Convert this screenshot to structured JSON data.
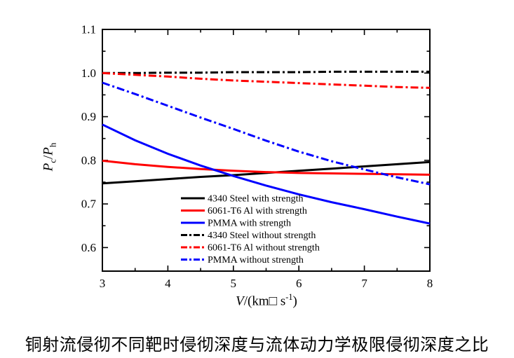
{
  "figure": {
    "caption": "铜射流侵彻不同靶时侵彻深度与流体动力学极限侵彻深度之比"
  },
  "axes": {
    "xlabel_var": "V",
    "xlabel_mid": "/(km□ s",
    "xlabel_sup": "-1",
    "xlabel_end": ")",
    "ylabel_p1": "P",
    "ylabel_sub1": "c",
    "ylabel_slash": "/",
    "ylabel_p2": "P",
    "ylabel_sub2": "h"
  },
  "chart_data": {
    "type": "line",
    "title": "",
    "xlabel": "V/(km□ s^-1)",
    "ylabel": "Pc/Ph",
    "xlim": [
      3,
      8
    ],
    "ylim": [
      0.546,
      1.1
    ],
    "x_ticks": [
      3,
      4,
      5,
      6,
      7,
      8
    ],
    "x_minor_ticks": [
      3.5,
      4.5,
      5.5,
      6.5,
      7.5
    ],
    "y_ticks": [
      0.6,
      0.7,
      0.8,
      0.9,
      1.0,
      1.1
    ],
    "y_minor_ticks": [
      0.65,
      0.75,
      0.85,
      0.95,
      1.05
    ],
    "grid": false,
    "legend_position": "inside-lower-left",
    "x": [
      3,
      3.5,
      4,
      4.5,
      5,
      5.5,
      6,
      6.5,
      7,
      7.5,
      8
    ],
    "series": [
      {
        "name": "4340 Steel with strength",
        "color": "#000000",
        "style": "solid",
        "values": [
          0.747,
          0.752,
          0.757,
          0.762,
          0.766,
          0.771,
          0.776,
          0.781,
          0.786,
          0.791,
          0.796
        ]
      },
      {
        "name": "6061-T6 Al with strength",
        "color": "#ff0000",
        "style": "solid",
        "values": [
          0.799,
          0.791,
          0.785,
          0.78,
          0.776,
          0.773,
          0.771,
          0.77,
          0.769,
          0.768,
          0.767
        ]
      },
      {
        "name": "PMMA with strength",
        "color": "#0000ff",
        "style": "solid",
        "values": [
          0.882,
          0.846,
          0.815,
          0.788,
          0.764,
          0.742,
          0.722,
          0.704,
          0.688,
          0.671,
          0.655
        ]
      },
      {
        "name": "4340 Steel without strength",
        "color": "#000000",
        "style": "dashdot",
        "values": [
          1.0,
          1.0,
          1.001,
          1.001,
          1.002,
          1.002,
          1.002,
          1.003,
          1.003,
          1.003,
          1.003
        ]
      },
      {
        "name": "6061-T6 Al without strength",
        "color": "#ff0000",
        "style": "dashdot",
        "values": [
          1.0,
          0.996,
          0.992,
          0.987,
          0.983,
          0.98,
          0.977,
          0.974,
          0.971,
          0.968,
          0.966
        ]
      },
      {
        "name": "PMMA without strength",
        "color": "#0000ff",
        "style": "dashdot",
        "values": [
          0.978,
          0.952,
          0.925,
          0.898,
          0.872,
          0.845,
          0.82,
          0.798,
          0.779,
          0.761,
          0.745
        ]
      }
    ]
  },
  "colors": {
    "axis": "#000000",
    "black_series": "#000000",
    "red_series": "#ff0000",
    "blue_series": "#0000ff",
    "background": "#ffffff"
  }
}
